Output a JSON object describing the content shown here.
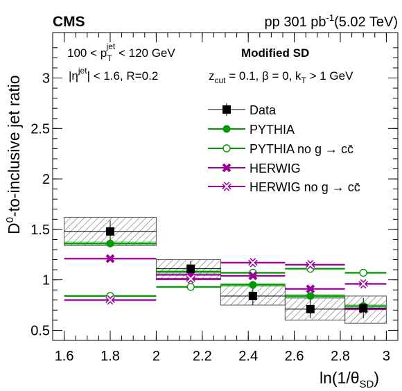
{
  "header": {
    "experiment": "CMS",
    "lumi_prefix": "pp 301 pb",
    "lumi_exp": "-1",
    "energy": "(5.02 TeV)"
  },
  "captions": {
    "pt_left": "100 < p",
    "pt_sub": "T",
    "pt_sup": "jet",
    "pt_right": " < 120 GeV",
    "eta_left": "|η",
    "eta_sup": "jet",
    "eta_right": "| < 1.6, R=0.2",
    "method": "Modified SD",
    "z_left": "z",
    "z_sub": "cut",
    "z_mid": " = 0.1, β = 0, k",
    "z_sub2": "T",
    "z_right": " > 1 GeV"
  },
  "axes": {
    "y_D0": "D",
    "y_sup": "0",
    "y_rest": "-to-inclusive jet ratio",
    "x_left": "ln(1/θ",
    "x_sub": "SD",
    "x_right": ")"
  },
  "chart_data": {
    "type": "scatter",
    "xlim": [
      1.55,
      3.05
    ],
    "ylim": [
      0.4,
      3.45
    ],
    "x_ticks": [
      1.6,
      1.8,
      2.0,
      2.2,
      2.4,
      2.6,
      2.8,
      3.0
    ],
    "x_tick_labels": [
      "1.6",
      "1.8",
      "2",
      "2.2",
      "2.4",
      "2.6",
      "2.8",
      "3"
    ],
    "y_ticks": [
      0.5,
      1.0,
      1.5,
      2.0,
      2.5,
      3.0
    ],
    "y_tick_labels": [
      "0.5",
      "1",
      "1.5",
      "2",
      "2.5",
      "3"
    ],
    "bins": [
      [
        1.6,
        2.0
      ],
      [
        2.0,
        2.28
      ],
      [
        2.28,
        2.56
      ],
      [
        2.56,
        2.82
      ],
      [
        2.82,
        3.0
      ]
    ],
    "bin_centers": [
      1.8,
      2.15,
      2.42,
      2.67,
      2.9
    ],
    "series": [
      {
        "name": "Data",
        "color": "#000000",
        "marker": "square-filled",
        "values": [
          1.48,
          1.11,
          0.84,
          0.71,
          0.72
        ],
        "stat_err": [
          0.11,
          0.08,
          0.09,
          0.09,
          0.1
        ],
        "syst_band": [
          [
            1.34,
            1.62
          ],
          [
            1.0,
            1.2
          ],
          [
            0.75,
            0.95
          ],
          [
            0.6,
            0.82
          ],
          [
            0.57,
            0.84
          ]
        ]
      },
      {
        "name": "PYTHIA",
        "color": "#009900",
        "marker": "circle-filled",
        "values": [
          1.36,
          1.08,
          0.95,
          0.84,
          0.74
        ],
        "band": [
          [
            1.34,
            1.38
          ],
          [
            1.06,
            1.1
          ],
          [
            0.93,
            0.97
          ],
          [
            0.82,
            0.86
          ],
          [
            0.72,
            0.76
          ]
        ]
      },
      {
        "name": "PYTHIA no g → cc̄",
        "color": "#009900",
        "marker": "circle-open",
        "values": [
          0.84,
          0.93,
          1.07,
          1.11,
          1.07
        ],
        "band": [
          [
            0.83,
            0.85
          ],
          [
            0.92,
            0.94
          ],
          [
            1.06,
            1.08
          ],
          [
            1.1,
            1.12
          ],
          [
            1.06,
            1.08
          ]
        ]
      },
      {
        "name": "HERWIG",
        "color": "#990099",
        "marker": "cross-filled",
        "values": [
          1.21,
          1.05,
          1.04,
          0.91,
          0.71
        ],
        "band": [
          [
            1.2,
            1.22
          ],
          [
            1.04,
            1.06
          ],
          [
            1.03,
            1.05
          ],
          [
            0.9,
            0.92
          ],
          [
            0.7,
            0.72
          ]
        ]
      },
      {
        "name": "HERWIG no g → cc̄",
        "color": "#990099",
        "marker": "cross-open",
        "values": [
          0.8,
          1.01,
          1.17,
          1.15,
          0.96
        ],
        "band": [
          [
            0.79,
            0.81
          ],
          [
            1.0,
            1.02
          ],
          [
            1.16,
            1.18
          ],
          [
            1.14,
            1.16
          ],
          [
            0.95,
            0.97
          ]
        ]
      }
    ],
    "legend_position": "top-right"
  }
}
